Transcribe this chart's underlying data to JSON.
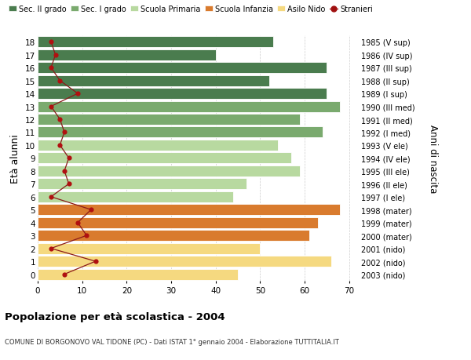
{
  "ages": [
    18,
    17,
    16,
    15,
    14,
    13,
    12,
    11,
    10,
    9,
    8,
    7,
    6,
    5,
    4,
    3,
    2,
    1,
    0
  ],
  "anni_nascita": [
    "1985 (V sup)",
    "1986 (IV sup)",
    "1987 (III sup)",
    "1988 (II sup)",
    "1989 (I sup)",
    "1990 (III med)",
    "1991 (II med)",
    "1992 (I med)",
    "1993 (V ele)",
    "1994 (IV ele)",
    "1995 (III ele)",
    "1996 (II ele)",
    "1997 (I ele)",
    "1998 (mater)",
    "1999 (mater)",
    "2000 (mater)",
    "2001 (nido)",
    "2002 (nido)",
    "2003 (nido)"
  ],
  "bar_values": [
    53,
    40,
    65,
    52,
    65,
    68,
    59,
    64,
    54,
    57,
    59,
    47,
    44,
    68,
    63,
    61,
    50,
    66,
    45
  ],
  "bar_colors": [
    "#4a7c4e",
    "#4a7c4e",
    "#4a7c4e",
    "#4a7c4e",
    "#4a7c4e",
    "#7aaa6e",
    "#7aaa6e",
    "#7aaa6e",
    "#b8d9a0",
    "#b8d9a0",
    "#b8d9a0",
    "#b8d9a0",
    "#b8d9a0",
    "#d97b2e",
    "#d97b2e",
    "#d97b2e",
    "#f5d980",
    "#f5d980",
    "#f5d980"
  ],
  "stranieri_values": [
    3,
    4,
    3,
    5,
    9,
    3,
    5,
    6,
    5,
    7,
    6,
    7,
    3,
    12,
    9,
    11,
    3,
    13,
    6
  ],
  "legend_labels": [
    "Sec. II grado",
    "Sec. I grado",
    "Scuola Primaria",
    "Scuola Infanzia",
    "Asilo Nido",
    "Stranieri"
  ],
  "legend_colors": [
    "#4a7c4e",
    "#7aaa6e",
    "#b8d9a0",
    "#d97b2e",
    "#f5d980",
    "#a01010"
  ],
  "ylabel_left": "Età alunni",
  "ylabel_right": "Anni di nascita",
  "title": "Popolazione per età scolastica - 2004",
  "subtitle": "COMUNE DI BORGONOVO VAL TIDONE (PC) - Dati ISTAT 1° gennaio 2004 - Elaborazione TUTTITALIA.IT",
  "xlim": [
    0,
    72
  ],
  "xticks": [
    0,
    10,
    20,
    30,
    40,
    50,
    60,
    70
  ],
  "grid_color": "#cccccc"
}
